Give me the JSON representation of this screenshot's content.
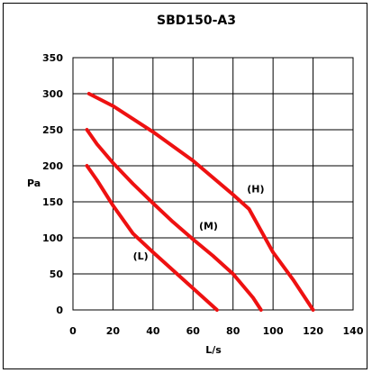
{
  "chart_data": {
    "type": "line",
    "title": "SBD150-A3",
    "xlabel": "L/s",
    "ylabel": "Pa",
    "xlim": [
      0,
      140
    ],
    "ylim": [
      0,
      350
    ],
    "xticks": [
      0,
      20,
      40,
      60,
      80,
      100,
      120,
      140
    ],
    "yticks": [
      0,
      50,
      100,
      150,
      200,
      250,
      300,
      350
    ],
    "grid": true,
    "line_color": "#ee1111",
    "series": [
      {
        "name": "(H)",
        "label_at": [
          87,
          163
        ],
        "points": [
          [
            8,
            300
          ],
          [
            20,
            283
          ],
          [
            40,
            247
          ],
          [
            60,
            207
          ],
          [
            80,
            160
          ],
          [
            88,
            140
          ],
          [
            100,
            80
          ],
          [
            110,
            42
          ],
          [
            120,
            0
          ]
        ]
      },
      {
        "name": "(M)",
        "label_at": [
          63,
          112
        ],
        "points": [
          [
            7,
            250
          ],
          [
            12,
            230
          ],
          [
            20,
            204
          ],
          [
            30,
            175
          ],
          [
            40,
            148
          ],
          [
            50,
            122
          ],
          [
            60,
            98
          ],
          [
            70,
            75
          ],
          [
            80,
            50
          ],
          [
            90,
            17
          ],
          [
            94,
            0
          ]
        ]
      },
      {
        "name": "(L)",
        "label_at": [
          30,
          70
        ],
        "points": [
          [
            7,
            200
          ],
          [
            12,
            180
          ],
          [
            20,
            145
          ],
          [
            30,
            106
          ],
          [
            40,
            80
          ],
          [
            50,
            55
          ],
          [
            60,
            30
          ],
          [
            66,
            15
          ],
          [
            72,
            0
          ]
        ]
      }
    ]
  }
}
